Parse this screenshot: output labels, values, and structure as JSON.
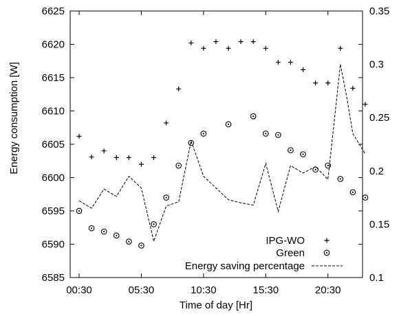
{
  "chart_data": {
    "type": "scatter",
    "title": "",
    "xlabel": "Time of day [Hr]",
    "ylabel": "Energy consumption [W]",
    "y2label": "",
    "xlim": [
      0,
      23.5
    ],
    "ylim": [
      6585,
      6625
    ],
    "y2lim": [
      0.1,
      0.35
    ],
    "x_ticks": [
      {
        "value": 0,
        "label": "00:30"
      },
      {
        "value": 5,
        "label": "05:30"
      },
      {
        "value": 10,
        "label": "10:30"
      },
      {
        "value": 15,
        "label": "15:30"
      },
      {
        "value": 20,
        "label": "20:30"
      }
    ],
    "y_ticks": [
      6585,
      6590,
      6595,
      6600,
      6605,
      6610,
      6615,
      6620,
      6625
    ],
    "y2_ticks": [
      "0.1",
      "0.15",
      "0.2",
      "0.25",
      "0.3",
      "0.35"
    ],
    "grid": false,
    "legend_position": "bottom-right",
    "series": [
      {
        "name": "IPG-WO",
        "marker": "plus",
        "axis": "left",
        "x": [
          0,
          1,
          2,
          3,
          4,
          5,
          6,
          7,
          8,
          9,
          10,
          11,
          12,
          13,
          14,
          15,
          16,
          17,
          18,
          19,
          20,
          21,
          22,
          23
        ],
        "y": [
          6606.2,
          6603.1,
          6604.0,
          6603.0,
          6603.0,
          6602.0,
          6603.0,
          6608.2,
          6613.3,
          6620.2,
          6619.4,
          6620.4,
          6619.4,
          6620.4,
          6620.4,
          6619.4,
          6617.3,
          6617.3,
          6616.2,
          6614.2,
          6614.2,
          6619.4,
          6613.4,
          6611.0
        ]
      },
      {
        "name": "Green",
        "marker": "circle",
        "axis": "left",
        "x": [
          0,
          1,
          2,
          3,
          4,
          5,
          6,
          7,
          8,
          9,
          10,
          11,
          12,
          13,
          14,
          15,
          16,
          17,
          18,
          19,
          20,
          21,
          22,
          23
        ],
        "y": [
          6595.0,
          6592.4,
          6591.9,
          6591.3,
          6590.4,
          6589.8,
          6593.0,
          6597.0,
          6601.8,
          6605.2,
          6606.6,
          null,
          6608.0,
          null,
          6609.2,
          6606.6,
          6606.4,
          6604.1,
          6603.5,
          6601.2,
          6601.8,
          6599.8,
          6597.8,
          6597.0
        ]
      },
      {
        "name": "Energy saving percentage",
        "marker": "dashed-line",
        "axis": "right",
        "x": [
          0,
          1,
          2,
          3,
          4,
          5,
          6,
          7,
          8,
          9,
          10,
          11,
          12,
          13,
          14,
          15,
          16,
          17,
          18,
          19,
          20,
          21,
          21.5,
          22,
          23
        ],
        "y": [
          0.172,
          0.165,
          0.183,
          0.176,
          0.195,
          0.184,
          0.134,
          0.167,
          0.171,
          0.228,
          0.195,
          0.184,
          0.173,
          0.17,
          0.168,
          0.207,
          0.162,
          0.205,
          0.198,
          0.204,
          0.192,
          0.3,
          0.27,
          0.235,
          0.216
        ]
      }
    ]
  }
}
